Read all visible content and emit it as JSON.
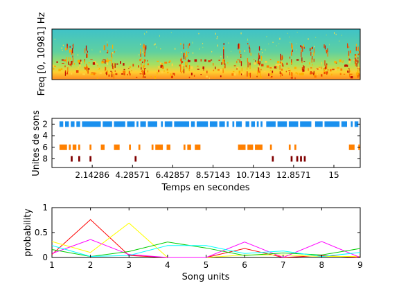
{
  "chart_data": [
    {
      "type": "heatmap",
      "ylabel": "Freq [0, 10981] Hz",
      "colormap": "jet",
      "content": "spectrogram"
    },
    {
      "type": "scatter",
      "xlabel": "Temps en secondes",
      "ylabel": "Unites de sons",
      "xlim": [
        0,
        16.4
      ],
      "ylim": [
        1,
        9.5
      ],
      "x_ticks": [
        "2.14286",
        "4.28571",
        "6.42857",
        "8.57143",
        "10.7143",
        "12.8571",
        "15"
      ],
      "y_ticks": [
        "2",
        "4",
        "6",
        "8"
      ],
      "series": [
        {
          "unit": 2,
          "color": "#1a90ee",
          "segments": [
            [
              0.4,
              0.6
            ],
            [
              0.7,
              0.9
            ],
            [
              1.0,
              1.2
            ],
            [
              1.3,
              1.5
            ],
            [
              1.6,
              2.6
            ],
            [
              2.7,
              3.2
            ],
            [
              3.3,
              3.9
            ],
            [
              4.0,
              4.4
            ],
            [
              4.5,
              4.6
            ],
            [
              4.7,
              5.0
            ],
            [
              5.1,
              5.6
            ],
            [
              5.8,
              5.9
            ],
            [
              6.0,
              6.4
            ],
            [
              6.5,
              7.3
            ],
            [
              7.4,
              7.6
            ],
            [
              7.7,
              8.3
            ],
            [
              8.4,
              8.8
            ],
            [
              8.9,
              9.2
            ],
            [
              9.3,
              9.4
            ],
            [
              9.6,
              9.7
            ],
            [
              9.8,
              10.1
            ],
            [
              10.3,
              10.5
            ],
            [
              10.6,
              10.8
            ],
            [
              10.9,
              11.0
            ],
            [
              11.1,
              11.2
            ],
            [
              11.4,
              11.9
            ],
            [
              12.0,
              12.5
            ],
            [
              12.6,
              13.1
            ],
            [
              13.2,
              13.8
            ],
            [
              14.0,
              14.4
            ],
            [
              14.5,
              15.3
            ],
            [
              15.4,
              15.7
            ],
            [
              15.9,
              16.0
            ],
            [
              16.1,
              16.3
            ]
          ]
        },
        {
          "unit": 6,
          "color": "#ff8000",
          "segments": [
            [
              0.4,
              0.8
            ],
            [
              0.9,
              1.0
            ],
            [
              1.1,
              1.3
            ],
            [
              1.4,
              1.5
            ],
            [
              2.0,
              2.1
            ],
            [
              2.6,
              2.8
            ],
            [
              3.3,
              3.6
            ],
            [
              4.1,
              4.2
            ],
            [
              4.6,
              4.7
            ],
            [
              5.3,
              5.4
            ],
            [
              5.5,
              5.9
            ],
            [
              6.1,
              6.3
            ],
            [
              7.0,
              7.1
            ],
            [
              7.2,
              7.4
            ],
            [
              7.6,
              7.9
            ],
            [
              9.9,
              10.3
            ],
            [
              10.4,
              10.7
            ],
            [
              10.8,
              11.2
            ],
            [
              11.6,
              11.7
            ],
            [
              12.6,
              12.7
            ],
            [
              12.9,
              13.0
            ],
            [
              15.8,
              16.1
            ],
            [
              16.3,
              16.4
            ]
          ]
        },
        {
          "unit": 8,
          "color": "#800000",
          "segments": [
            [
              1.0,
              1.1
            ],
            [
              1.4,
              1.5
            ],
            [
              2.0,
              2.1
            ],
            [
              4.4,
              4.5
            ],
            [
              11.7,
              11.8
            ],
            [
              12.7,
              12.8
            ],
            [
              13.0,
              13.1
            ],
            [
              13.2,
              13.3
            ],
            [
              13.4,
              13.5
            ]
          ]
        }
      ]
    },
    {
      "type": "line",
      "xlabel": "Song units",
      "ylabel": "probability",
      "xlim": [
        1,
        9
      ],
      "ylim": [
        0,
        1
      ],
      "x": [
        1,
        2,
        3,
        4,
        5,
        6,
        7,
        8,
        9
      ],
      "x_ticks": [
        "1",
        "2",
        "3",
        "4",
        "5",
        "6",
        "7",
        "8",
        "9"
      ],
      "y_ticks": [
        "0",
        "0.5",
        "1"
      ],
      "series": [
        {
          "color": "#ff0000",
          "values": [
            0.06,
            0.76,
            0.04,
            0.0,
            0.0,
            0.18,
            0.0,
            0.04,
            0.0
          ]
        },
        {
          "color": "#ffff00",
          "values": [
            0.32,
            0.1,
            0.69,
            0.0,
            0.0,
            0.05,
            0.05,
            0.02,
            0.02
          ]
        },
        {
          "color": "#ff00ff",
          "values": [
            0.08,
            0.36,
            0.06,
            0.0,
            0.0,
            0.31,
            0.0,
            0.32,
            0.0
          ]
        },
        {
          "color": "#00cc00",
          "values": [
            0.16,
            0.02,
            0.12,
            0.31,
            0.19,
            0.04,
            0.09,
            0.05,
            0.18
          ]
        },
        {
          "color": "#00ffff",
          "values": [
            0.24,
            0.02,
            0.04,
            0.24,
            0.24,
            0.08,
            0.13,
            0.02,
            0.1
          ]
        }
      ]
    }
  ]
}
